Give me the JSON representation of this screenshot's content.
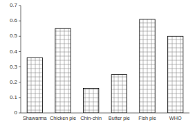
{
  "chart_data": {
    "type": "bar",
    "categories": [
      "Shawarma",
      "Chicken pie",
      "Chin-chin",
      "Butter pie",
      "Fish pie",
      "WHO"
    ],
    "values": [
      0.36,
      0.55,
      0.16,
      0.25,
      0.61,
      0.5
    ],
    "color": "#ffffff",
    "ylim": [
      0,
      0.7
    ],
    "yticks": [
      0,
      0.1,
      0.2,
      0.3,
      0.4,
      0.5,
      0.6,
      0.7
    ]
  }
}
